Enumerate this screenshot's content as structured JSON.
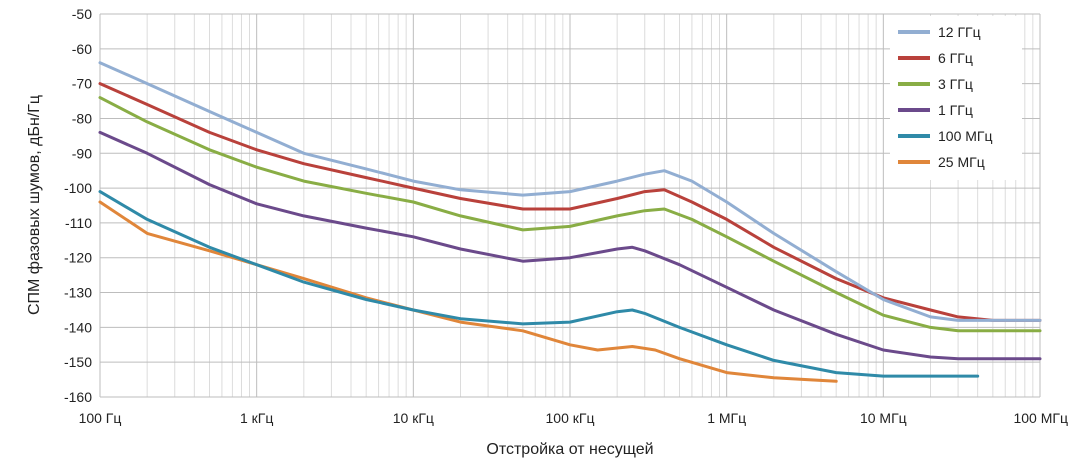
{
  "chart_data": {
    "type": "line",
    "title": "",
    "xlabel": "Отстройка от несущей",
    "ylabel": "СПМ фазовых шумов, дБн/Гц",
    "x_scale": "log",
    "xlim": [
      100,
      100000000
    ],
    "ylim": [
      -160,
      -50
    ],
    "x_ticks": [
      {
        "value": 100,
        "label": "100 Гц"
      },
      {
        "value": 1000,
        "label": "1 кГц"
      },
      {
        "value": 10000,
        "label": "10 кГц"
      },
      {
        "value": 100000,
        "label": "100 кГц"
      },
      {
        "value": 1000000,
        "label": "1 МГц"
      },
      {
        "value": 10000000,
        "label": "10 МГц"
      },
      {
        "value": 100000000,
        "label": "100 МГц"
      }
    ],
    "y_ticks": [
      {
        "value": -50,
        "label": "-50"
      },
      {
        "value": -60,
        "label": "-60"
      },
      {
        "value": -70,
        "label": "-70"
      },
      {
        "value": -80,
        "label": "-80"
      },
      {
        "value": -90,
        "label": "-90"
      },
      {
        "value": -100,
        "label": "-100"
      },
      {
        "value": -110,
        "label": "-110"
      },
      {
        "value": -120,
        "label": "-120"
      },
      {
        "value": -130,
        "label": "-130"
      },
      {
        "value": -140,
        "label": "-140"
      },
      {
        "value": -150,
        "label": "-150"
      },
      {
        "value": -160,
        "label": "-160"
      }
    ],
    "grid": true,
    "legend_position": "top-right",
    "series": [
      {
        "name": "12 ГГц",
        "color": "#92aed2",
        "x": [
          100,
          200,
          500,
          1000,
          2000,
          5000,
          10000,
          20000,
          50000,
          100000,
          200000,
          300000,
          400000,
          600000,
          1000000,
          2000000,
          5000000,
          10000000,
          20000000,
          30000000,
          50000000,
          100000000
        ],
        "y": [
          -64,
          -70,
          -78,
          -84,
          -90,
          -94.5,
          -98,
          -100.5,
          -102,
          -101,
          -98,
          -96,
          -95,
          -98,
          -104,
          -113,
          -124,
          -132,
          -137,
          -138,
          -138,
          -138
        ]
      },
      {
        "name": "6 ГГц",
        "color": "#b9413b",
        "x": [
          100,
          200,
          500,
          1000,
          2000,
          5000,
          10000,
          20000,
          50000,
          100000,
          200000,
          300000,
          400000,
          600000,
          1000000,
          2000000,
          5000000,
          10000000,
          20000000,
          30000000,
          50000000,
          100000000
        ],
        "y": [
          -70,
          -76,
          -84,
          -89,
          -93,
          -97,
          -100,
          -103,
          -106,
          -106,
          -103,
          -101,
          -100.5,
          -104,
          -109,
          -117,
          -126,
          -131.5,
          -135,
          -137,
          -138,
          -138
        ]
      },
      {
        "name": "3 ГГц",
        "color": "#89ad45",
        "x": [
          100,
          200,
          500,
          1000,
          2000,
          5000,
          10000,
          20000,
          50000,
          100000,
          200000,
          300000,
          400000,
          600000,
          1000000,
          2000000,
          5000000,
          10000000,
          20000000,
          30000000,
          50000000,
          100000000
        ],
        "y": [
          -74,
          -81,
          -89,
          -94,
          -98,
          -101.5,
          -104,
          -108,
          -112,
          -111,
          -108,
          -106.5,
          -106,
          -109,
          -114,
          -121,
          -130,
          -136.5,
          -140,
          -141,
          -141,
          -141
        ]
      },
      {
        "name": "1 ГГц",
        "color": "#6b4a8b",
        "x": [
          100,
          200,
          500,
          1000,
          2000,
          5000,
          10000,
          20000,
          50000,
          100000,
          200000,
          250000,
          300000,
          500000,
          1000000,
          2000000,
          5000000,
          10000000,
          20000000,
          30000000,
          50000000,
          100000000
        ],
        "y": [
          -84,
          -90,
          -99,
          -104.5,
          -108,
          -111.5,
          -114,
          -117.5,
          -121,
          -120,
          -117.5,
          -117,
          -118,
          -122,
          -128.5,
          -135,
          -142,
          -146.5,
          -148.5,
          -149,
          -149,
          -149
        ]
      },
      {
        "name": "100 МГц",
        "color": "#2f8aa8",
        "x": [
          100,
          200,
          500,
          1000,
          2000,
          5000,
          10000,
          20000,
          50000,
          100000,
          200000,
          250000,
          300000,
          500000,
          1000000,
          2000000,
          5000000,
          10000000,
          20000000,
          40000000
        ],
        "y": [
          -101,
          -109,
          -117,
          -122,
          -127,
          -132,
          -135,
          -137.5,
          -139,
          -138.5,
          -135.5,
          -135,
          -136,
          -140,
          -145,
          -149.5,
          -153,
          -154,
          -154,
          -154
        ]
      },
      {
        "name": "25 МГц",
        "color": "#e0863a",
        "x": [
          100,
          200,
          500,
          1000,
          2000,
          5000,
          10000,
          20000,
          50000,
          100000,
          150000,
          250000,
          350000,
          500000,
          1000000,
          2000000,
          5000000
        ],
        "y": [
          -104,
          -113,
          -118,
          -122,
          -126,
          -131.5,
          -135,
          -138.5,
          -141,
          -145,
          -146.5,
          -145.5,
          -146.5,
          -149,
          -153,
          -154.5,
          -155.5
        ]
      }
    ]
  }
}
